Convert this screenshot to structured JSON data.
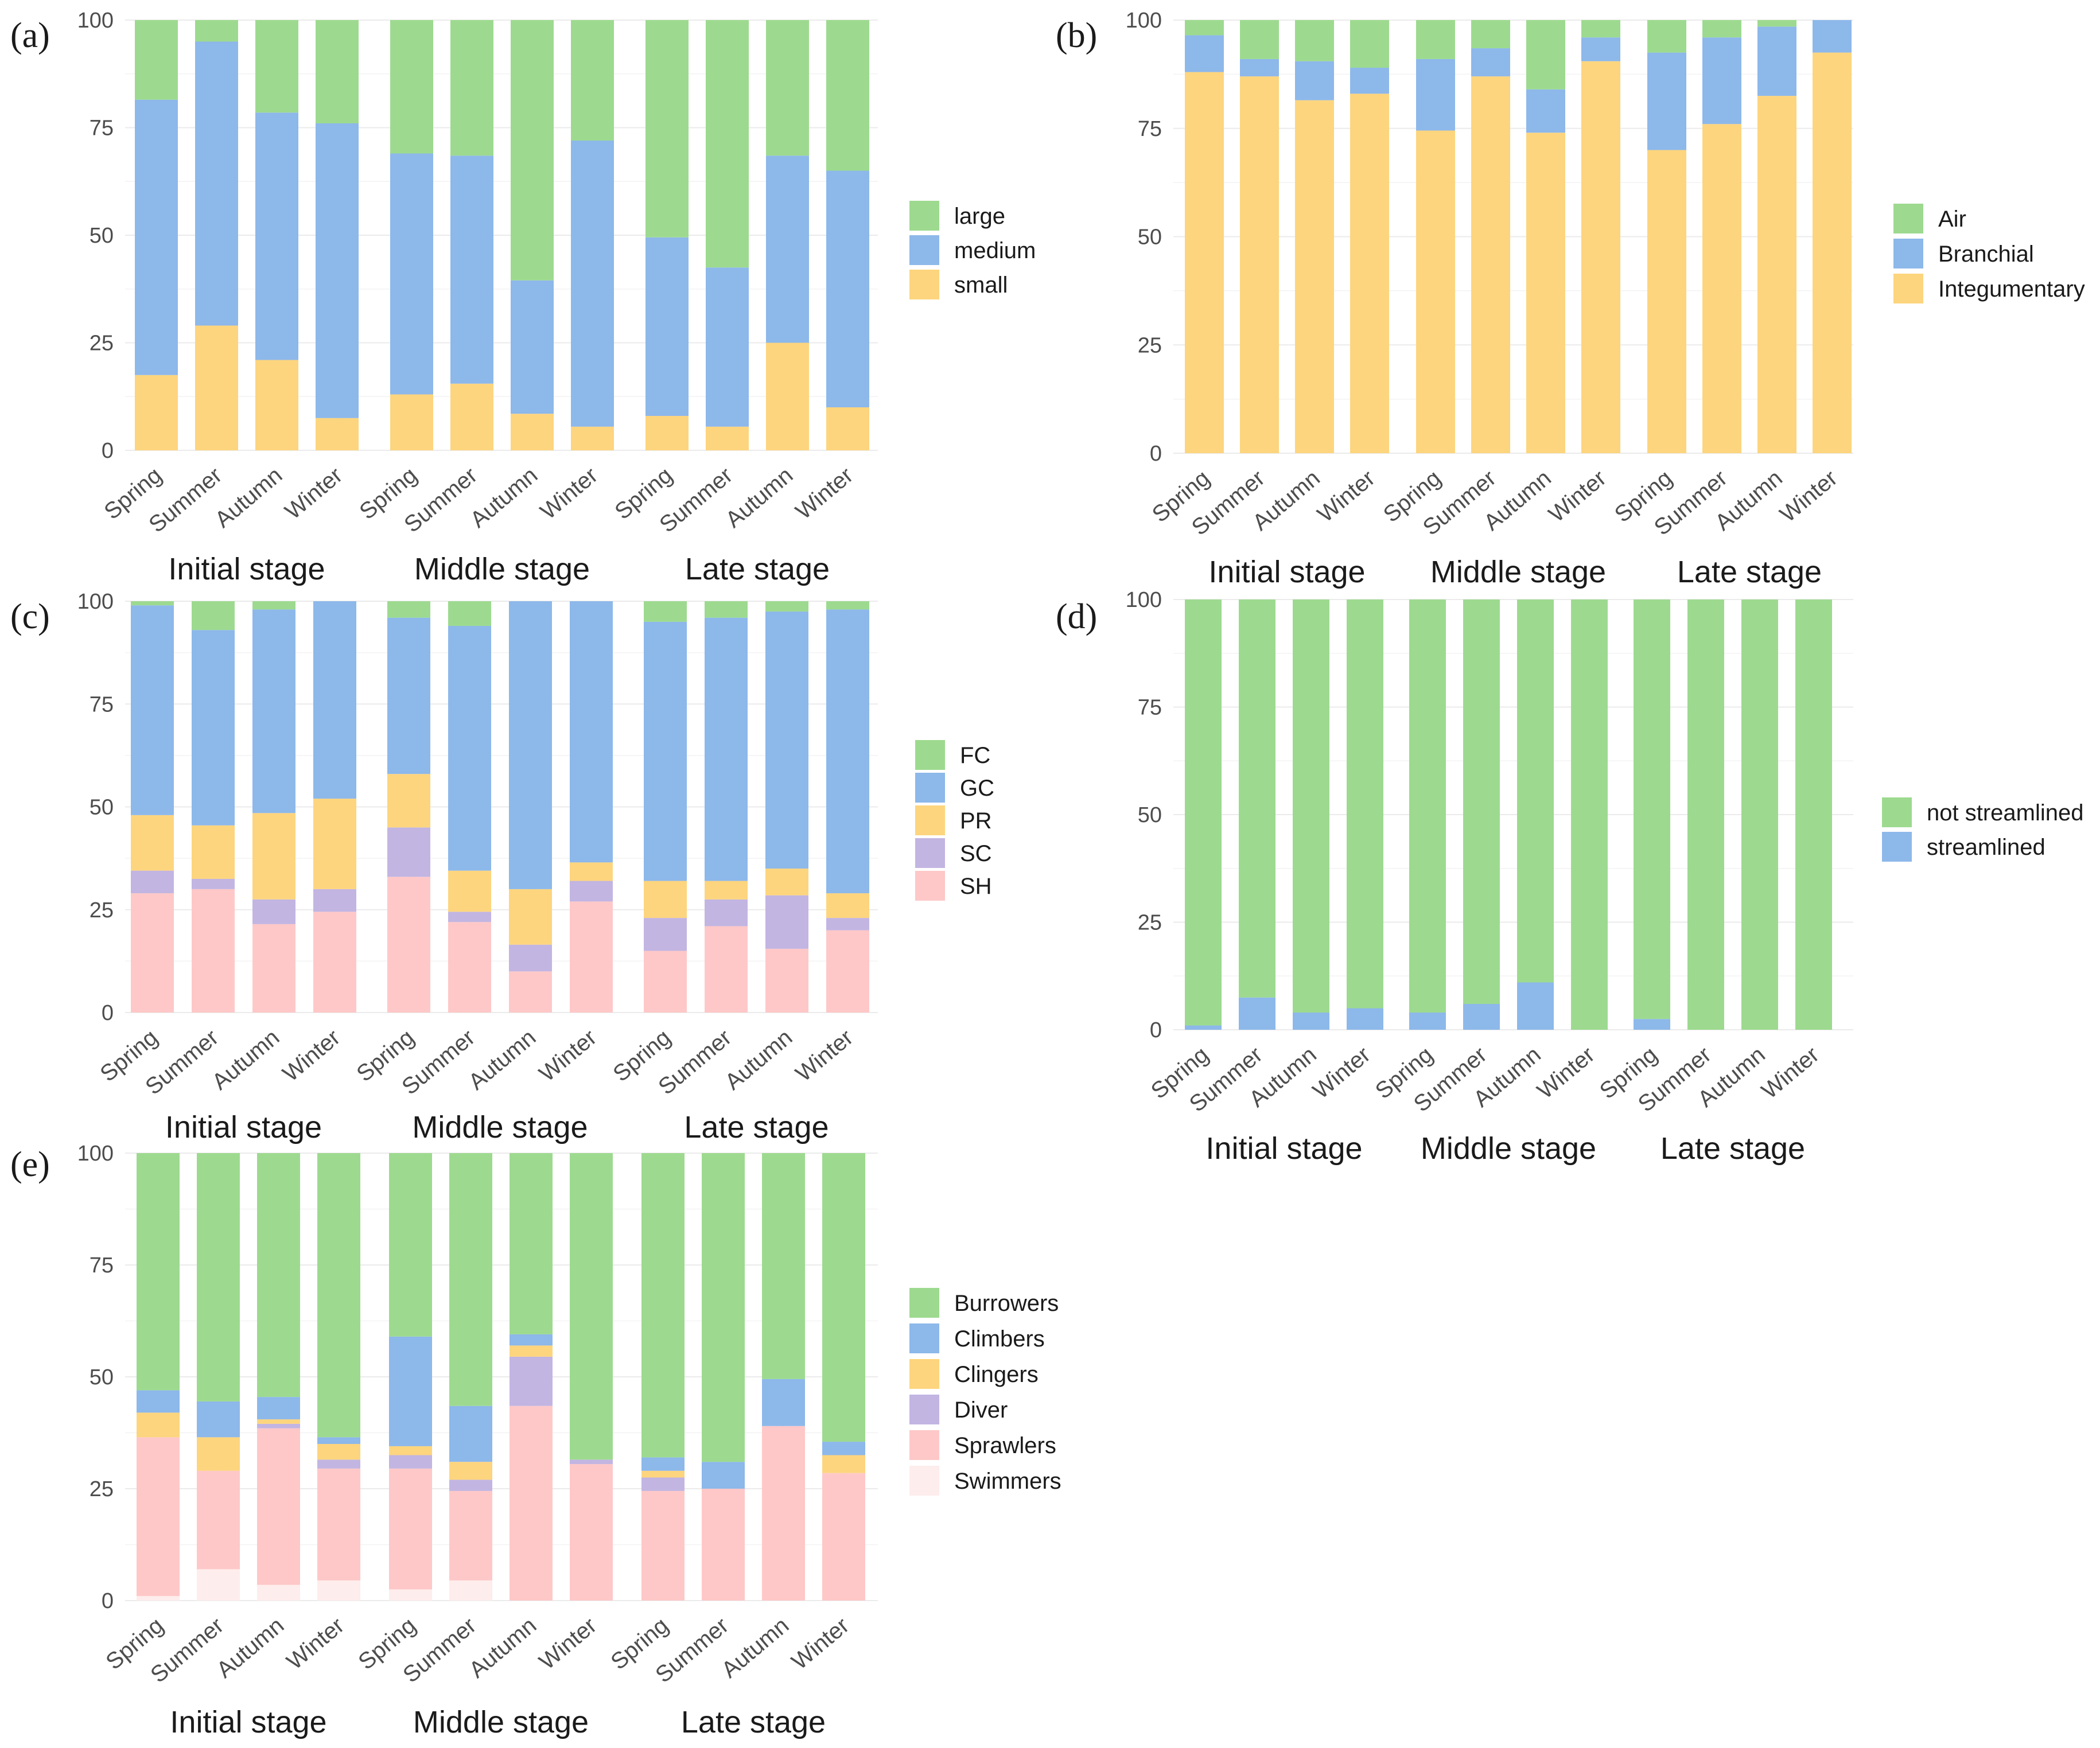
{
  "chart_data": [
    {
      "panel": "(a)",
      "type": "bar",
      "stacked": true,
      "ylim": [
        0,
        100
      ],
      "yticks": [
        "0",
        "25",
        "50",
        "75",
        "100"
      ],
      "categories": [
        "Spring",
        "Summer",
        "Autumn",
        "Winter"
      ],
      "stages": [
        "Initial stage",
        "Middle stage",
        "Late stage"
      ],
      "series": [
        {
          "name": "small",
          "color": "#FDD57E",
          "values": [
            [
              17.5,
              29,
              21,
              7.5
            ],
            [
              13,
              15.5,
              8.5,
              5.5
            ],
            [
              8,
              5.5,
              25,
              10
            ]
          ]
        },
        {
          "name": "medium",
          "color": "#8DB8EA",
          "values": [
            [
              64,
              66,
              57.5,
              68.5
            ],
            [
              56,
              53,
              31,
              66.5
            ],
            [
              41.5,
              37,
              43.5,
              55
            ]
          ]
        },
        {
          "name": "large",
          "color": "#9DDA8F",
          "values": [
            [
              18.5,
              5,
              21.5,
              24
            ],
            [
              31,
              31.5,
              60.5,
              28
            ],
            [
              50.5,
              57.5,
              31.5,
              35
            ]
          ]
        }
      ]
    },
    {
      "panel": "(b)",
      "type": "bar",
      "stacked": true,
      "ylim": [
        0,
        100
      ],
      "yticks": [
        "0",
        "25",
        "50",
        "75",
        "100"
      ],
      "categories": [
        "Spring",
        "Summer",
        "Autumn",
        "Winter"
      ],
      "stages": [
        "Initial stage",
        "Middle stage",
        "Late stage"
      ],
      "series": [
        {
          "name": "Integumentary",
          "color": "#FDD57E",
          "values": [
            [
              88,
              87,
              81.5,
              83
            ],
            [
              74.5,
              87,
              74,
              90.5
            ],
            [
              70,
              76,
              82.5,
              92.5
            ]
          ]
        },
        {
          "name": "Branchial",
          "color": "#8DB8EA",
          "values": [
            [
              8.5,
              4,
              9,
              6
            ],
            [
              16.5,
              6.5,
              10,
              5.5
            ],
            [
              22.5,
              20,
              16,
              7.5
            ]
          ]
        },
        {
          "name": "Air",
          "color": "#9DDA8F",
          "values": [
            [
              3.5,
              9,
              9.5,
              11
            ],
            [
              9,
              6.5,
              16,
              4
            ],
            [
              7.5,
              4,
              1.5,
              0
            ]
          ]
        }
      ]
    },
    {
      "panel": "(c)",
      "type": "bar",
      "stacked": true,
      "ylim": [
        0,
        100
      ],
      "yticks": [
        "0",
        "25",
        "50",
        "75",
        "100"
      ],
      "categories": [
        "Spring",
        "Summer",
        "Autumn",
        "Winter"
      ],
      "stages": [
        "Initial stage",
        "Middle stage",
        "Late stage"
      ],
      "series": [
        {
          "name": "SH",
          "color": "#FEC8C8",
          "values": [
            [
              29,
              30,
              21.5,
              24.5
            ],
            [
              33,
              22,
              10,
              27
            ],
            [
              15,
              21,
              15.5,
              20
            ]
          ]
        },
        {
          "name": "SC",
          "color": "#C2B5E2",
          "values": [
            [
              5.5,
              2.5,
              6,
              5.5
            ],
            [
              12,
              2.5,
              6.5,
              5
            ],
            [
              8,
              6.5,
              13,
              3
            ]
          ]
        },
        {
          "name": "PR",
          "color": "#FDD57E",
          "values": [
            [
              13.5,
              13,
              21,
              22
            ],
            [
              13,
              10,
              13.5,
              4.5
            ],
            [
              9,
              4.5,
              6.5,
              6
            ]
          ]
        },
        {
          "name": "GC",
          "color": "#8DB8EA",
          "values": [
            [
              51,
              47.5,
              49.5,
              48
            ],
            [
              38,
              59.5,
              70,
              63.5
            ],
            [
              63,
              64,
              62.5,
              69
            ]
          ]
        },
        {
          "name": "FC",
          "color": "#9DDA8F",
          "values": [
            [
              1,
              7,
              2,
              0
            ],
            [
              4,
              6,
              0,
              0
            ],
            [
              5,
              4,
              2.5,
              2
            ]
          ]
        }
      ]
    },
    {
      "panel": "(d)",
      "type": "bar",
      "stacked": true,
      "ylim": [
        0,
        100
      ],
      "yticks": [
        "0",
        "25",
        "50",
        "75",
        "100"
      ],
      "categories": [
        "Spring",
        "Summer",
        "Autumn",
        "Winter"
      ],
      "stages": [
        "Initial stage",
        "Middle stage",
        "Late stage"
      ],
      "series": [
        {
          "name": "streamlined",
          "color": "#8DB8EA",
          "values": [
            [
              1,
              7.5,
              4,
              5
            ],
            [
              4,
              6,
              11,
              0
            ],
            [
              2.5,
              0,
              0,
              0
            ]
          ]
        },
        {
          "name": "not streamlined",
          "color": "#9DDA8F",
          "values": [
            [
              99,
              92.5,
              96,
              95
            ],
            [
              96,
              94,
              89,
              100
            ],
            [
              97.5,
              100,
              100,
              100
            ]
          ]
        }
      ]
    },
    {
      "panel": "(e)",
      "type": "bar",
      "stacked": true,
      "ylim": [
        0,
        100
      ],
      "yticks": [
        "0",
        "25",
        "50",
        "75",
        "100"
      ],
      "categories": [
        "Spring",
        "Summer",
        "Autumn",
        "Winter"
      ],
      "stages": [
        "Initial stage",
        "Middle stage",
        "Late stage"
      ],
      "series": [
        {
          "name": "Swimmers",
          "color": "#FEEDED",
          "values": [
            [
              1,
              7,
              3.5,
              4.5
            ],
            [
              2.5,
              4.5,
              0,
              0
            ],
            [
              0,
              0,
              0,
              0
            ]
          ]
        },
        {
          "name": "Sprawlers",
          "color": "#FEC8C8",
          "values": [
            [
              35.5,
              22,
              35,
              25
            ],
            [
              27,
              20,
              43.5,
              30.5
            ],
            [
              24.5,
              25,
              39,
              28.5
            ]
          ]
        },
        {
          "name": "Diver",
          "color": "#C2B5E2",
          "values": [
            [
              0,
              0,
              1,
              2
            ],
            [
              3,
              2.5,
              11,
              1
            ],
            [
              3,
              0,
              0,
              0
            ]
          ]
        },
        {
          "name": "Clingers",
          "color": "#FDD57E",
          "values": [
            [
              5.5,
              7.5,
              1,
              3.5
            ],
            [
              2,
              4,
              2.5,
              0
            ],
            [
              1.5,
              0,
              0,
              4
            ]
          ]
        },
        {
          "name": "Climbers",
          "color": "#8DB8EA",
          "values": [
            [
              5,
              8,
              5,
              1.5
            ],
            [
              24.5,
              12.5,
              2.5,
              0
            ],
            [
              3,
              6,
              10.5,
              3
            ]
          ]
        },
        {
          "name": "Burrowers",
          "color": "#9DDA8F",
          "values": [
            [
              53,
              55.5,
              54.5,
              63.5
            ],
            [
              41,
              56.5,
              40.5,
              68.5
            ],
            [
              68,
              69,
              50.5,
              64.5
            ]
          ]
        }
      ]
    }
  ]
}
